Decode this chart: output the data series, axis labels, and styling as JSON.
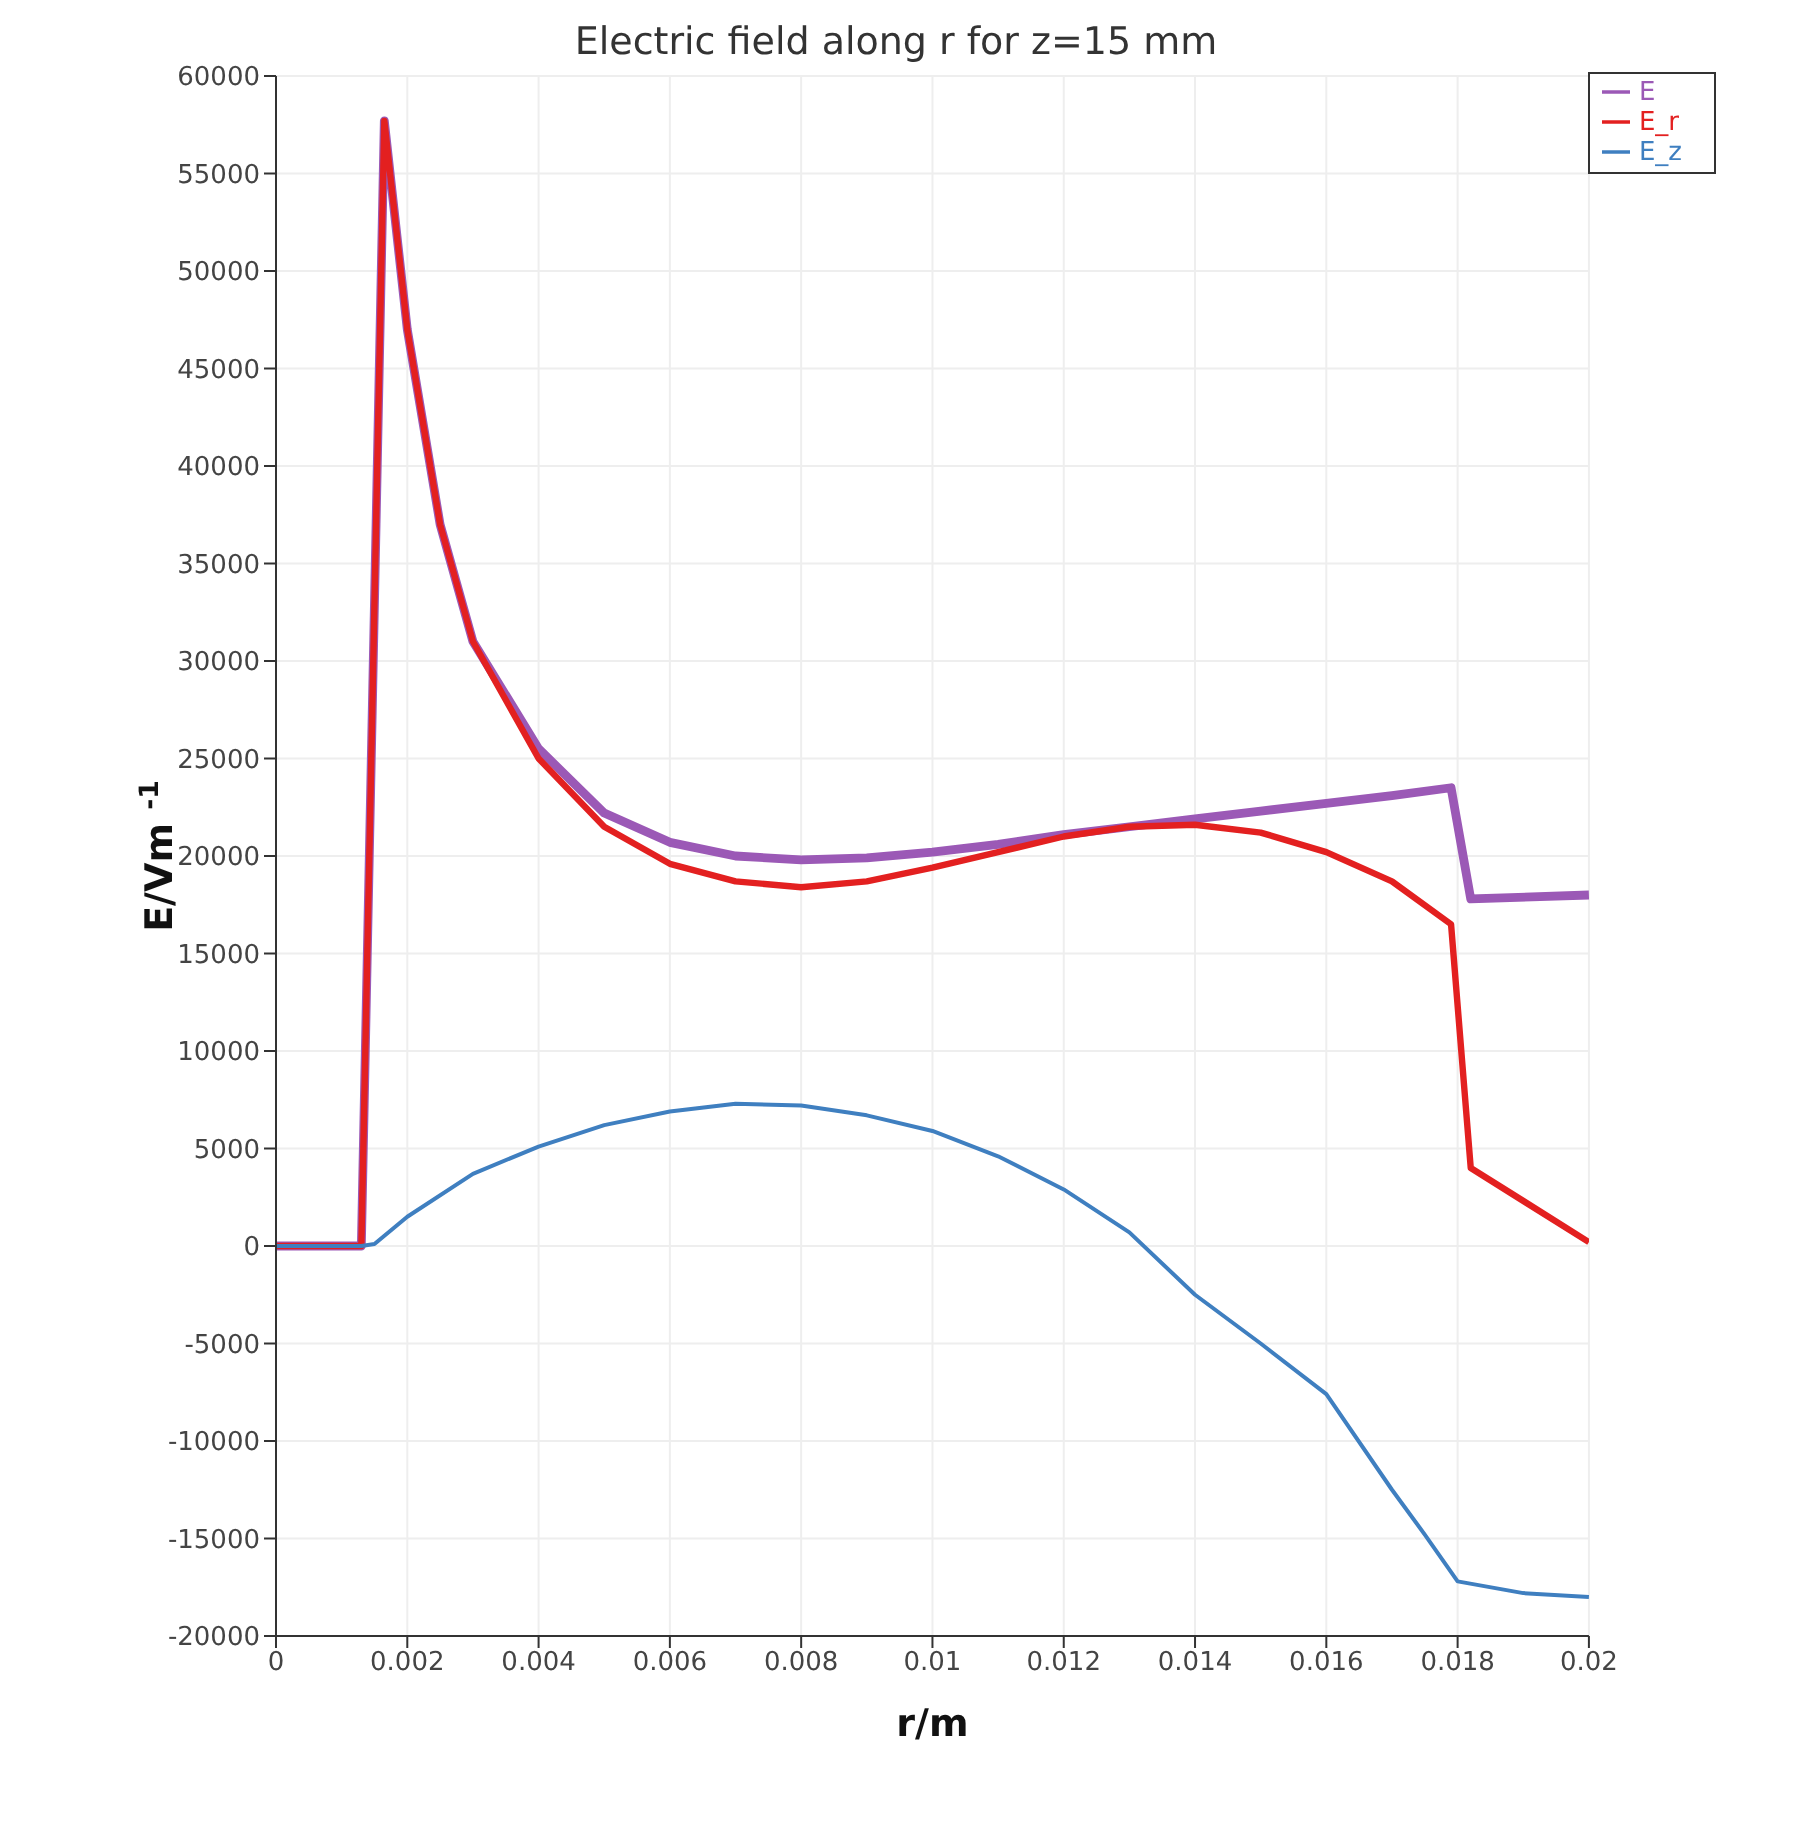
{
  "chart_data": {
    "type": "line",
    "title": "Electric field along r for z=15 mm",
    "xlabel": "r/m",
    "ylabel": "E/Vm $^{-1}$",
    "xlim": [
      0,
      0.02
    ],
    "xticks": [
      0,
      0.002,
      0.004,
      0.006,
      0.008,
      0.01,
      0.012,
      0.014,
      0.016,
      0.018,
      0.02
    ],
    "ylim": [
      -20000,
      60000
    ],
    "yticks": [
      -20000,
      -15000,
      -10000,
      -5000,
      0,
      5000,
      10000,
      15000,
      20000,
      25000,
      30000,
      35000,
      40000,
      45000,
      50000,
      55000,
      60000
    ],
    "grid": true,
    "legend": "top right",
    "marker": "none",
    "line_style": "solid",
    "series": [
      {
        "name": "E",
        "color": "#9b59b6",
        "x": [
          0,
          0.0013,
          0.00165,
          0.002,
          0.0025,
          0.003,
          0.004,
          0.005,
          0.006,
          0.007,
          0.008,
          0.009,
          0.01,
          0.011,
          0.012,
          0.013,
          0.014,
          0.015,
          0.016,
          0.017,
          0.0179,
          0.0182,
          0.02
        ],
        "values": [
          0,
          0,
          57700,
          47000,
          37000,
          31000,
          25500,
          22200,
          20700,
          20000,
          19800,
          19900,
          20200,
          20600,
          21100,
          21500,
          21900,
          22300,
          22700,
          23100,
          23500,
          17800,
          18000
        ]
      },
      {
        "name": "E_r",
        "color": "#e32020",
        "x": [
          0,
          0.0013,
          0.00165,
          0.002,
          0.0025,
          0.003,
          0.004,
          0.005,
          0.006,
          0.007,
          0.008,
          0.009,
          0.01,
          0.011,
          0.012,
          0.013,
          0.014,
          0.015,
          0.016,
          0.017,
          0.0179,
          0.0182,
          0.02
        ],
        "values": [
          0,
          0,
          57700,
          47000,
          37000,
          31000,
          25000,
          21500,
          19600,
          18700,
          18400,
          18700,
          19400,
          20200,
          21000,
          21500,
          21600,
          21200,
          20200,
          18700,
          16500,
          4000,
          200
        ]
      },
      {
        "name": "E_z",
        "color": "#3f7fc0",
        "x": [
          0,
          0.0013,
          0.0015,
          0.002,
          0.003,
          0.004,
          0.005,
          0.006,
          0.007,
          0.008,
          0.009,
          0.01,
          0.011,
          0.012,
          0.013,
          0.014,
          0.015,
          0.016,
          0.017,
          0.0175,
          0.018,
          0.019,
          0.02
        ],
        "values": [
          0,
          0,
          100,
          1500,
          3700,
          5100,
          6200,
          6900,
          7300,
          7200,
          6700,
          5900,
          4600,
          2900,
          700,
          -2500,
          -5000,
          -7600,
          -12500,
          -14800,
          -17200,
          -17800,
          -18000
        ]
      }
    ]
  }
}
